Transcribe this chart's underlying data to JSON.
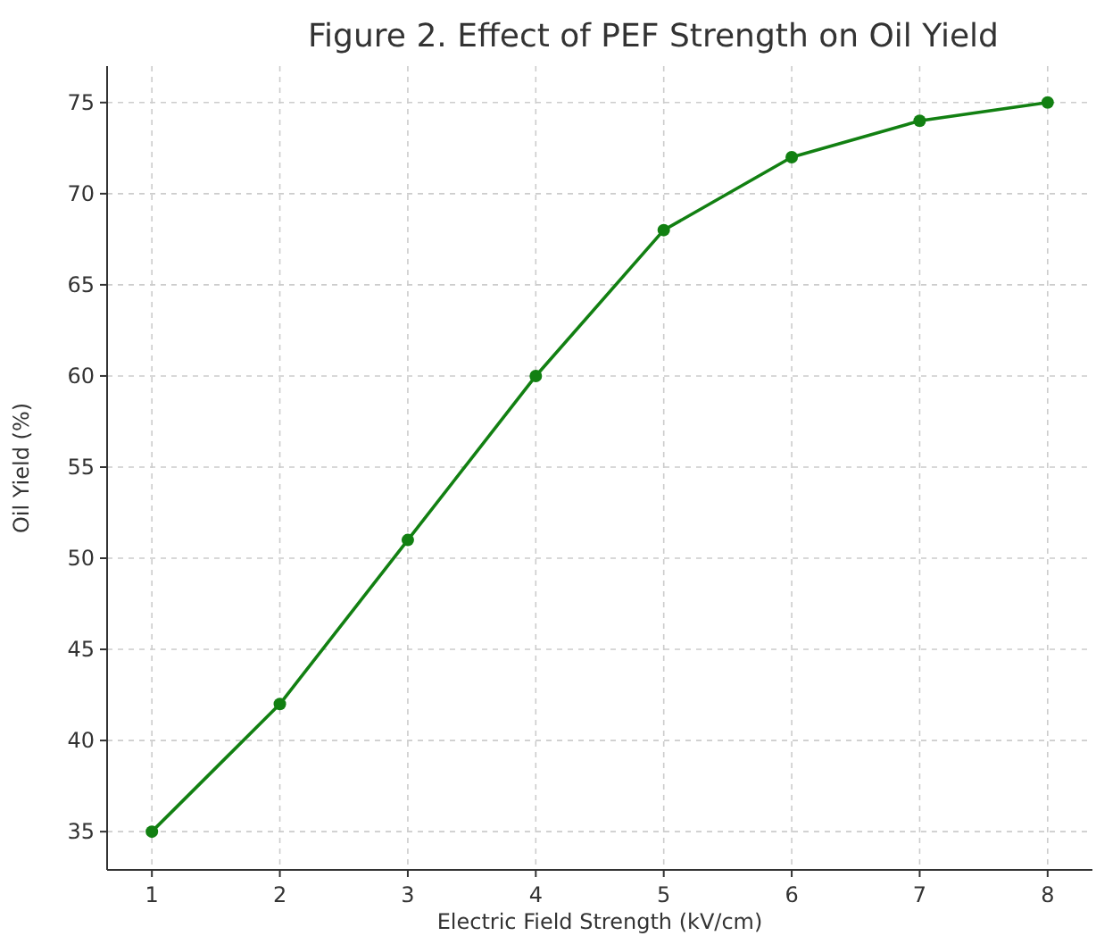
{
  "chart_data": {
    "type": "line",
    "title": "Figure 2. Effect of PEF Strength on Oil Yield",
    "xlabel": "Electric Field Strength (kV/cm)",
    "ylabel": "Oil Yield (%)",
    "x": [
      1,
      2,
      3,
      4,
      5,
      6,
      7,
      8
    ],
    "series": [
      {
        "color": "#128012",
        "values": [
          35,
          42,
          51,
          60,
          68,
          72,
          74,
          75
        ]
      }
    ],
    "xlim": [
      0.65,
      8.35
    ],
    "ylim": [
      32.9,
      77
    ],
    "xticks": [
      1,
      2,
      3,
      4,
      5,
      6,
      7,
      8
    ],
    "yticks": [
      35,
      40,
      45,
      50,
      55,
      60,
      65,
      70,
      75
    ],
    "grid": true,
    "marker": "circle",
    "line_style": "solid"
  }
}
